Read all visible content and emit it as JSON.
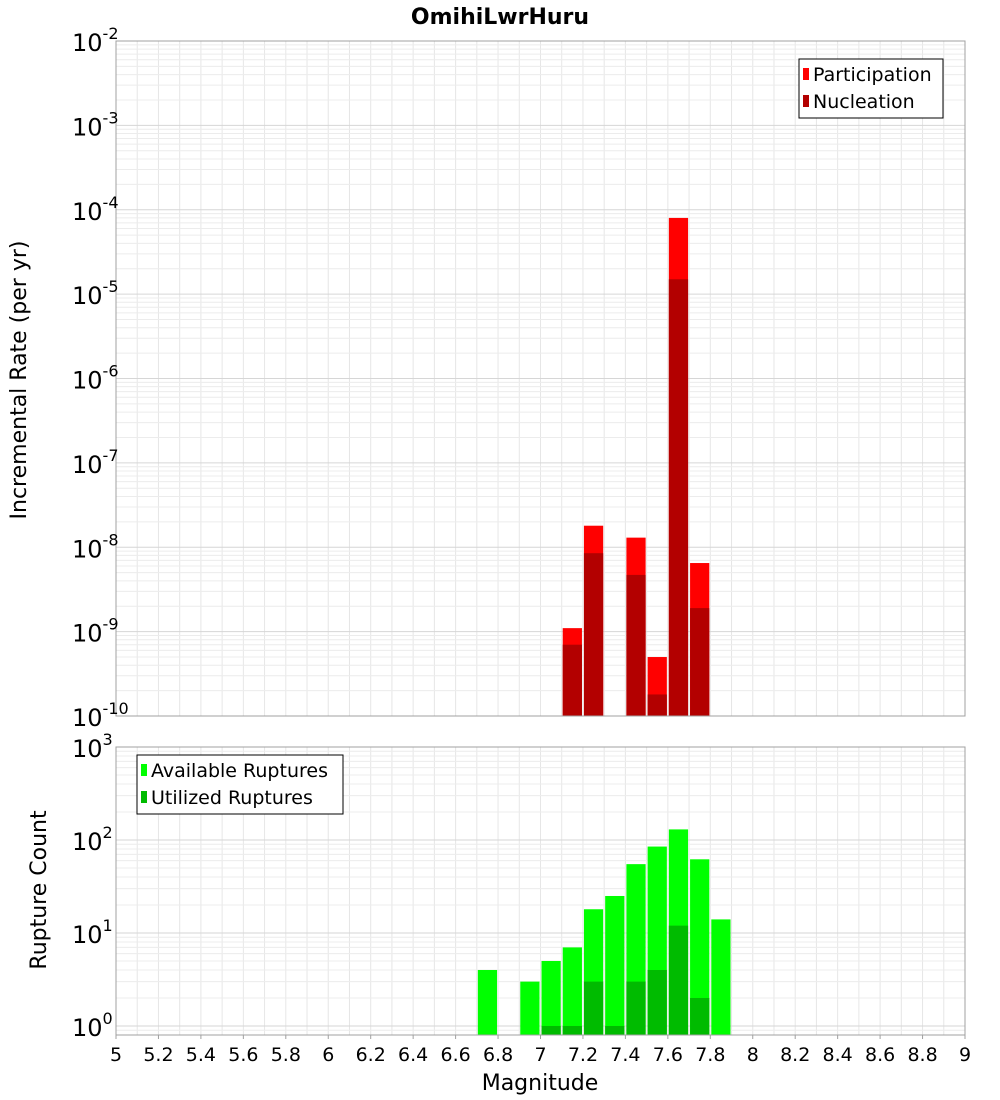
{
  "chart_data": [
    {
      "type": "bar",
      "title": "OmihiLwrHuru",
      "xlabel": "",
      "ylabel": "Incremental Rate (per yr)",
      "yscale": "log",
      "ylim": [
        1e-10,
        0.01
      ],
      "xlim": [
        5,
        9
      ],
      "bin_width": 0.1,
      "legend_position": "top-right",
      "grid": true,
      "series": [
        {
          "name": "Participation",
          "color": "#ff0000",
          "x": [
            7.15,
            7.25,
            7.45,
            7.55,
            7.65,
            7.75
          ],
          "values": [
            1.1e-09,
            1.8e-08,
            1.3e-08,
            5e-10,
            8e-05,
            6.5e-09
          ]
        },
        {
          "name": "Nucleation",
          "color": "#b30000",
          "x": [
            7.15,
            7.25,
            7.45,
            7.55,
            7.65,
            7.75
          ],
          "values": [
            7e-10,
            8.5e-09,
            4.7e-09,
            1.8e-10,
            1.5e-05,
            1.9e-09
          ]
        }
      ]
    },
    {
      "type": "bar",
      "title": "",
      "xlabel": "Magnitude",
      "ylabel": "Rupture Count",
      "yscale": "log",
      "ylim": [
        0.8,
        1000
      ],
      "xlim": [
        5,
        9
      ],
      "bin_width": 0.1,
      "legend_position": "top-left",
      "grid": true,
      "x_ticks": [
        "5",
        "5.2",
        "5.4",
        "5.6",
        "5.8",
        "6",
        "6.2",
        "6.4",
        "6.6",
        "6.8",
        "7",
        "7.2",
        "7.4",
        "7.6",
        "7.8",
        "8",
        "8.2",
        "8.4",
        "8.6",
        "8.8",
        "9"
      ],
      "series": [
        {
          "name": "Available Ruptures",
          "color": "#00ff00",
          "x": [
            6.75,
            6.95,
            7.05,
            7.15,
            7.25,
            7.35,
            7.45,
            7.55,
            7.65,
            7.75,
            7.85
          ],
          "values": [
            4,
            3,
            5,
            7,
            18,
            25,
            55,
            85,
            130,
            62,
            14
          ]
        },
        {
          "name": "Utilized Ruptures",
          "color": "#00bb00",
          "x": [
            7.05,
            7.15,
            7.25,
            7.35,
            7.45,
            7.55,
            7.65,
            7.75
          ],
          "values": [
            1,
            1,
            3,
            1,
            3,
            4,
            12,
            2
          ]
        }
      ]
    }
  ]
}
